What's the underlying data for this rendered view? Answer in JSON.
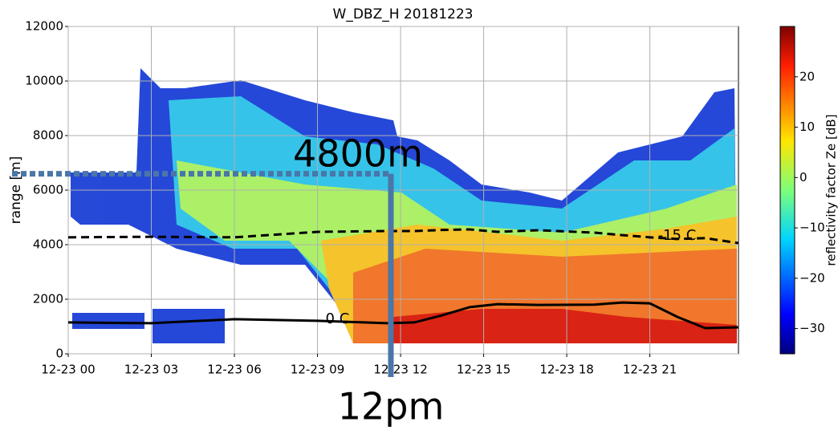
{
  "chart_data": {
    "type": "line",
    "title": "W_DBZ_H 20181223",
    "y_label": "range [m]",
    "xlim": [
      0,
      24.2
    ],
    "xticks": [
      {
        "value": 0,
        "label": "12-23 00"
      },
      {
        "value": 3,
        "label": "12-23 03"
      },
      {
        "value": 6,
        "label": "12-23 06"
      },
      {
        "value": 9,
        "label": "12-23 09"
      },
      {
        "value": 12,
        "label": "12-23 12"
      },
      {
        "value": 15,
        "label": "12-23 15"
      },
      {
        "value": 18,
        "label": "12-23 18"
      },
      {
        "value": 21,
        "label": "12-23 21"
      }
    ],
    "ylim": [
      0,
      12000
    ],
    "yticks": [
      0,
      2000,
      4000,
      6000,
      8000,
      10000,
      12000
    ],
    "grid": true,
    "x": [
      0,
      3,
      6,
      9,
      11.5,
      12.5,
      13.5,
      14.5,
      15.5,
      17,
      19,
      20,
      21,
      22,
      23,
      24.2
    ],
    "series": [
      {
        "name": "0 C",
        "color": "#000000",
        "dash": false,
        "values": [
          1150,
          1120,
          1270,
          1210,
          1120,
          1150,
          1410,
          1710,
          1820,
          1790,
          1800,
          1880,
          1850,
          1350,
          940,
          970
        ]
      },
      {
        "name": "-15 C",
        "color": "#000000",
        "dash": true,
        "values": [
          4270,
          4290,
          4270,
          4470,
          4500,
          4500,
          4540,
          4560,
          4470,
          4530,
          4440,
          4350,
          4270,
          4210,
          4240,
          4060
        ]
      }
    ],
    "colorbar": {
      "label": "reflectivity factor Ze [dB]",
      "clim": [
        -35,
        30
      ],
      "ticks": [
        20,
        10,
        0,
        {
          "value": -10,
          "label": "−10"
        },
        {
          "value": -20,
          "label": "−20"
        },
        {
          "value": -30,
          "label": "−30"
        }
      ]
    },
    "reference_point": {
      "x": 11.65,
      "y": 6600
    },
    "annotations": {
      "height": "4800m",
      "time": "12pm"
    }
  }
}
